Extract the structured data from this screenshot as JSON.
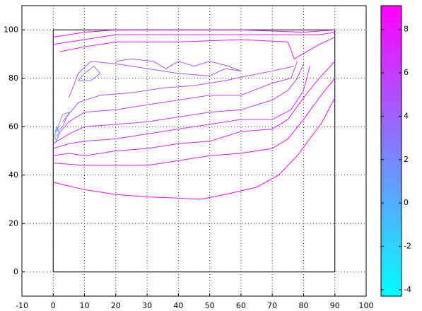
{
  "chart_data": {
    "type": "contour",
    "xlim": [
      -10,
      100
    ],
    "ylim": [
      -10,
      110
    ],
    "xticks": [
      -10,
      0,
      10,
      20,
      30,
      40,
      50,
      60,
      70,
      80,
      90,
      100
    ],
    "yticks": [
      0,
      20,
      40,
      60,
      80,
      100
    ],
    "grid": true,
    "clim": [
      -4.3,
      9.1
    ],
    "cticks": [
      -4,
      -2,
      0,
      2,
      4,
      6,
      8
    ],
    "colormap": "cool",
    "boundary": {
      "x": [
        0,
        90,
        90,
        0,
        0
      ],
      "y": [
        0,
        0,
        100,
        100,
        0
      ]
    },
    "lines": [
      {
        "level": 8.8,
        "x": [
          0,
          10,
          20,
          30,
          40,
          47,
          55,
          65,
          72,
          78,
          82,
          86,
          90
        ],
        "y": [
          37,
          34,
          32,
          31,
          30.5,
          30,
          32,
          35,
          40,
          48,
          55,
          62,
          72
        ]
      },
      {
        "level": 8.2,
        "x": [
          0,
          10,
          20,
          30,
          40,
          50,
          60,
          70,
          75,
          80,
          85,
          90
        ],
        "y": [
          45,
          44,
          44,
          44,
          46,
          48,
          49,
          51,
          55,
          63,
          72,
          80
        ]
      },
      {
        "level": 7.6,
        "x": [
          0,
          5,
          10,
          20,
          30,
          40,
          50,
          60,
          70,
          75,
          80,
          85,
          90
        ],
        "y": [
          48,
          49,
          48,
          50,
          51,
          53,
          54,
          58,
          59,
          63,
          72,
          80,
          87
        ]
      },
      {
        "level": 7.0,
        "x": [
          0,
          5,
          10,
          20,
          30,
          40,
          50,
          60,
          70,
          76,
          80,
          82
        ],
        "y": [
          51,
          53,
          54,
          55,
          57,
          59,
          61,
          63,
          63,
          67,
          75,
          85
        ]
      },
      {
        "level": 6.4,
        "x": [
          0,
          5,
          10,
          20,
          30,
          40,
          50,
          60,
          70,
          75,
          78,
          80
        ],
        "y": [
          53,
          57,
          60,
          61,
          62,
          64,
          66,
          67,
          71,
          75,
          80,
          86
        ]
      },
      {
        "level": 5.8,
        "x": [
          1,
          5,
          10,
          20,
          30,
          40,
          50,
          60,
          70,
          76,
          78
        ],
        "y": [
          56,
          62,
          66,
          67,
          69,
          71,
          73,
          73,
          78,
          80,
          87
        ]
      },
      {
        "level": 5.2,
        "x": [
          3,
          8,
          15,
          25,
          35,
          45,
          55,
          62,
          70,
          77
        ],
        "y": [
          62,
          70,
          73,
          74,
          76,
          77,
          79,
          81,
          83,
          85
        ]
      },
      {
        "level": 4.6,
        "x": [
          5,
          8,
          12,
          20,
          30,
          40,
          50,
          55,
          60,
          56,
          50,
          45,
          40,
          36,
          32,
          25,
          20
        ],
        "y": [
          72,
          82,
          87,
          86,
          84,
          82,
          81,
          84,
          83,
          85,
          87,
          85,
          87,
          84,
          87,
          88,
          87
        ]
      },
      {
        "level": 3.4,
        "x": [
          8,
          10,
          13,
          15,
          12,
          8
        ],
        "y": [
          79,
          82,
          85,
          82,
          79,
          79
        ]
      },
      {
        "level": 1.0,
        "x": [
          1,
          2,
          1,
          0.5,
          1
        ],
        "y": [
          54,
          57,
          60,
          56,
          54
        ]
      },
      {
        "level": 2.2,
        "x": [
          1,
          3,
          5,
          3,
          1
        ],
        "y": [
          58,
          65,
          66,
          60,
          58
        ]
      },
      {
        "level": 7.6,
        "x": [
          2,
          10,
          20,
          40,
          60,
          75,
          77,
          85,
          90
        ],
        "y": [
          91,
          93,
          95,
          95,
          96,
          95,
          88,
          94,
          97
        ]
      },
      {
        "level": 8.2,
        "x": [
          0,
          10,
          20,
          30,
          50,
          70,
          85,
          90
        ],
        "y": [
          94,
          96,
          98,
          98,
          98,
          98,
          98,
          99
        ]
      },
      {
        "level": 8.8,
        "x": [
          0,
          10,
          20,
          40,
          60,
          80,
          90
        ],
        "y": [
          97,
          99,
          100,
          100,
          100,
          99,
          100
        ]
      }
    ]
  }
}
